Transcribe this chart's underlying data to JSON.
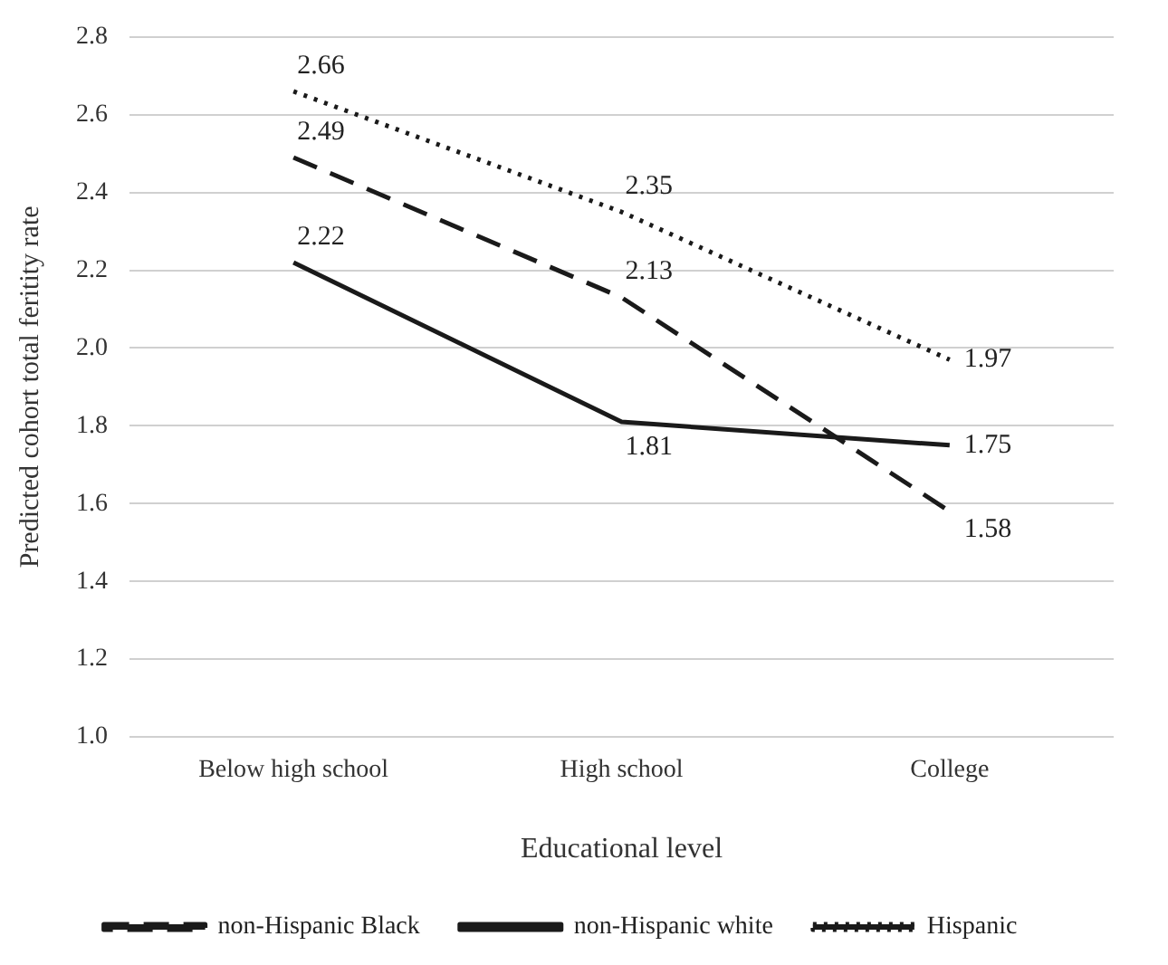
{
  "chart_data": {
    "type": "line",
    "xlabel": "Educational level",
    "ylabel": "Predicted cohort total feritity rate",
    "categories": [
      "Below high school",
      "High school",
      "College"
    ],
    "series": [
      {
        "name": "non-Hispanic Black",
        "color": "#1a1a1a",
        "values": [
          2.49,
          2.13,
          1.58
        ],
        "line_style": "dashed"
      },
      {
        "name": "non-Hispanic white",
        "color": "#1a1a1a",
        "values": [
          2.22,
          1.81,
          1.75
        ],
        "line_style": "solid"
      },
      {
        "name": "Hispanic",
        "color": "#1a1a1a",
        "values": [
          2.66,
          2.35,
          1.97
        ],
        "line_style": "dotted"
      }
    ],
    "ylim": [
      1.0,
      2.8
    ],
    "yticks": [
      {
        "value": 1,
        "label": "1.0"
      },
      1.2,
      1.4,
      1.6,
      1.8,
      {
        "value": 2,
        "label": "2.0"
      },
      2.2,
      2.4,
      2.6,
      2.8
    ],
    "grid": "y",
    "legend": "bottom",
    "marker": "none",
    "data_labels": true
  }
}
